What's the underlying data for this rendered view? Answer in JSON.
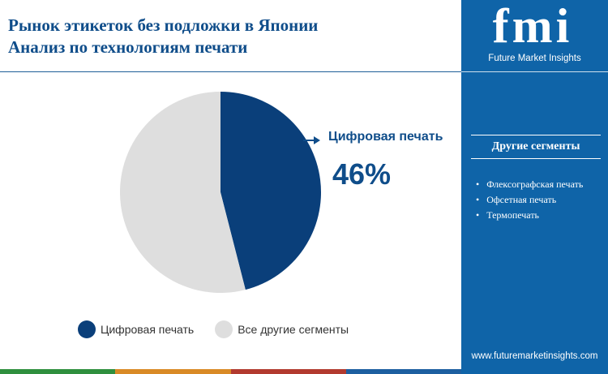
{
  "title": {
    "line1": "Рынок этикеток без подложки в Японии",
    "line2": "Анализ по технологиям печати"
  },
  "brand": {
    "letters": "fmi",
    "name": "Future Market Insights",
    "url": "www.futuremarketinsights.com"
  },
  "sidebar": {
    "heading": "Другие сегменты",
    "items": [
      "Флексографская печать",
      "Офсетная печать",
      "Термопечать"
    ]
  },
  "callout": {
    "label": "Цифровая печать",
    "value": "46%"
  },
  "colors": {
    "primary": "#0a3f7a",
    "secondary": "#dedede",
    "panel": "#0f64a8",
    "title": "#0f4d8a",
    "bar": [
      "#2f8f3e",
      "#d98a26",
      "#b23a2f",
      "#1d5fa0"
    ]
  },
  "chart_data": {
    "type": "pie",
    "title": "",
    "categories": [
      "Цифровая печать",
      "Все другие сегменты"
    ],
    "values": [
      46,
      54
    ],
    "unit": "%",
    "legend_position": "bottom"
  }
}
